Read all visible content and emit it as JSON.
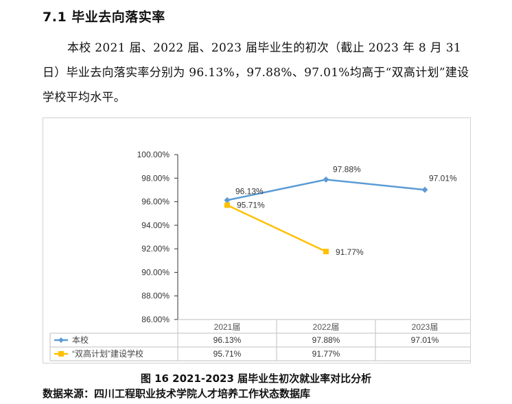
{
  "section": {
    "heading": "7.1 毕业去向落实率",
    "paragraph": "本校 2021 届、2022 届、2023 届毕业生的初次（截止 2023 年 8 月 31 日）毕业去向落实率分别为 96.13%，97.88%、97.01%均高于“双高计划”建设学校平均水平。"
  },
  "figure": {
    "caption": "图 16 2021-2023 届毕业生初次就业率对比分析",
    "source": "数据来源：四川工程职业技术学院人才培养工作状态数据库"
  },
  "chart_data": {
    "type": "line",
    "categories": [
      "2021届",
      "2022届",
      "2023届"
    ],
    "series": [
      {
        "name": "本校",
        "values": [
          96.13,
          97.88,
          97.01
        ],
        "labels": [
          "96.13%",
          "97.88%",
          "97.01%"
        ],
        "color": "#5b9bd5",
        "marker": "diamond"
      },
      {
        "name": "“双高计划”建设学校",
        "values": [
          95.71,
          91.77,
          null
        ],
        "labels": [
          "95.71%",
          "91.77%",
          ""
        ],
        "color": "#ffc000",
        "marker": "square"
      }
    ],
    "ylim": [
      86,
      100
    ],
    "yticks": [
      "86.00%",
      "88.00%",
      "90.00%",
      "92.00%",
      "94.00%",
      "96.00%",
      "98.00%",
      "100.00%"
    ],
    "grid": false,
    "data_table": true
  }
}
